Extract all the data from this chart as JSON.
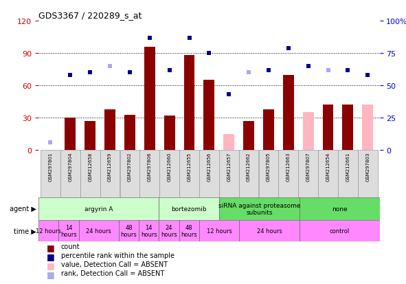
{
  "title": "GDS3367 / 220289_s_at",
  "samples": [
    "GSM297801",
    "GSM297804",
    "GSM212658",
    "GSM212659",
    "GSM297802",
    "GSM297806",
    "GSM212660",
    "GSM212655",
    "GSM212656",
    "GSM212657",
    "GSM212662",
    "GSM297805",
    "GSM212663",
    "GSM297807",
    "GSM212654",
    "GSM212661",
    "GSM297803"
  ],
  "bar_values": [
    0,
    30,
    27,
    38,
    33,
    96,
    32,
    88,
    65,
    15,
    27,
    38,
    70,
    35,
    42,
    42,
    42
  ],
  "bar_absent": [
    true,
    false,
    false,
    false,
    false,
    false,
    false,
    false,
    false,
    true,
    false,
    false,
    false,
    true,
    false,
    false,
    true
  ],
  "rank_values": [
    6,
    58,
    60,
    65,
    60,
    87,
    62,
    87,
    75,
    43,
    60,
    62,
    79,
    65,
    62,
    62,
    58
  ],
  "rank_absent": [
    true,
    false,
    false,
    true,
    false,
    false,
    false,
    false,
    false,
    false,
    true,
    false,
    false,
    false,
    true,
    false,
    false
  ],
  "agent_groups": [
    {
      "start": 0,
      "end": 6,
      "label": "argyrin A",
      "color": "#ccffcc"
    },
    {
      "start": 6,
      "end": 9,
      "label": "bortezomib",
      "color": "#ccffcc"
    },
    {
      "start": 9,
      "end": 13,
      "label": "siRNA against proteasome\nsubunits",
      "color": "#66dd66"
    },
    {
      "start": 13,
      "end": 17,
      "label": "none",
      "color": "#66dd66"
    }
  ],
  "time_groups": [
    {
      "start": 0,
      "end": 1,
      "label": "12 hours",
      "color": "#ff88ff"
    },
    {
      "start": 1,
      "end": 2,
      "label": "14\nhours",
      "color": "#ff88ff"
    },
    {
      "start": 2,
      "end": 4,
      "label": "24 hours",
      "color": "#ff88ff"
    },
    {
      "start": 4,
      "end": 5,
      "label": "48\nhours",
      "color": "#ff88ff"
    },
    {
      "start": 5,
      "end": 6,
      "label": "14\nhours",
      "color": "#ff88ff"
    },
    {
      "start": 6,
      "end": 7,
      "label": "24\nhours",
      "color": "#ff88ff"
    },
    {
      "start": 7,
      "end": 8,
      "label": "48\nhours",
      "color": "#ff88ff"
    },
    {
      "start": 8,
      "end": 10,
      "label": "12 hours",
      "color": "#ff88ff"
    },
    {
      "start": 10,
      "end": 13,
      "label": "24 hours",
      "color": "#ff88ff"
    },
    {
      "start": 13,
      "end": 17,
      "label": "control",
      "color": "#ff88ff"
    }
  ],
  "ylim_left": [
    0,
    120
  ],
  "ylim_right": [
    0,
    100
  ],
  "yticks_left": [
    0,
    30,
    60,
    90,
    120
  ],
  "yticks_right": [
    0,
    25,
    50,
    75,
    100
  ],
  "bar_color_present": "#8b0000",
  "bar_color_absent": "#ffb6c1",
  "rank_color_present": "#00008b",
  "rank_color_absent": "#aaaaee",
  "bg_color": "#ffffff",
  "tick_color_left": "#cc0000",
  "tick_color_right": "#0000cc",
  "sample_box_color": "#dddddd",
  "sample_box_edge": "#999999",
  "bar_width": 0.55,
  "marker_size": 5,
  "grid_yticks": [
    30,
    60,
    90
  ],
  "legend_items": [
    {
      "color": "#8b0000",
      "label": "count"
    },
    {
      "color": "#00008b",
      "label": "percentile rank within the sample"
    },
    {
      "color": "#ffb6c1",
      "label": "value, Detection Call = ABSENT"
    },
    {
      "color": "#aaaaee",
      "label": "rank, Detection Call = ABSENT"
    }
  ]
}
